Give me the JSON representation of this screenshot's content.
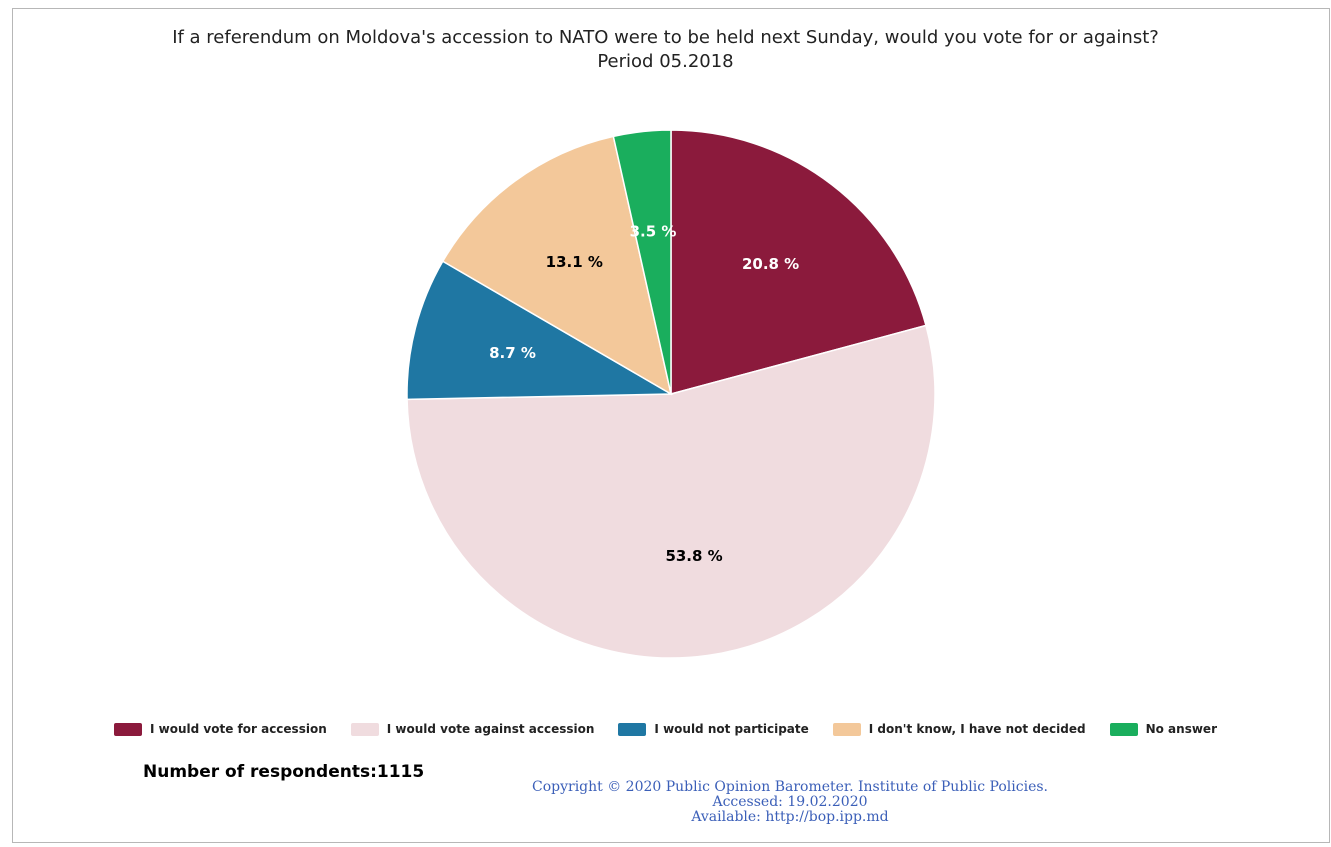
{
  "chart_data": {
    "type": "pie",
    "title": "If a referendum on Moldova's accession to NATO were to be held next Sunday, would you vote for or against?",
    "subtitle": "Period 05.2018",
    "slices": [
      {
        "name": "I would vote for accession",
        "value": 20.8,
        "label": "20.8 %",
        "color": "#8b1a3c",
        "label_color": "#ffffff"
      },
      {
        "name": "I would vote against accession",
        "value": 53.8,
        "label": "53.8 %",
        "color": "#f0dcdf",
        "label_color": "#000000"
      },
      {
        "name": "I would not participate",
        "value": 8.7,
        "label": "8.7 %",
        "color": "#1f77a3",
        "label_color": "#ffffff"
      },
      {
        "name": "I don't know, I have not decided",
        "value": 13.1,
        "label": "13.1 %",
        "color": "#f3c89a",
        "label_color": "#000000"
      },
      {
        "name": "No answer",
        "value": 3.5,
        "label": "3.5 %",
        "color": "#1aae5d",
        "label_color": "#ffffff"
      }
    ],
    "start_angle": "12 o'clock",
    "direction": "clockwise",
    "legend_position": "bottom"
  },
  "footer": {
    "respondents": "Number of respondents:1115",
    "copyright_line1": "Copyright © 2020 Public Opinion Barometer. Institute of Public Policies.",
    "copyright_line2": "Accessed: 19.02.2020",
    "copyright_line3": "Available: http://bop.ipp.md"
  }
}
